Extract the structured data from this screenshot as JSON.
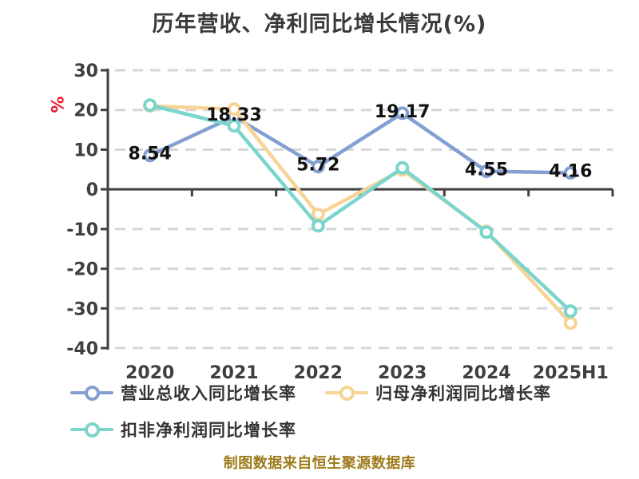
{
  "title": "历年营收、净利同比增长情况(%)",
  "footer": "制图数据来自恒生聚源数据库",
  "colors": {
    "grid": "#d6d6d6",
    "axis": "#3f3f3f",
    "axis_text": "#3f3f3f",
    "data_label": "#111111",
    "unit": "#e8192c",
    "title": "#3a3a3a",
    "legend_text": "#333333",
    "footer": "#9e7c1c"
  },
  "chart_data": {
    "type": "line",
    "categories": [
      "2020",
      "2021",
      "2022",
      "2023",
      "2024",
      "2025H1"
    ],
    "series": [
      {
        "name": "营业总收入同比增长率",
        "color": "#84a0d2",
        "values": [
          8.54,
          18.33,
          5.72,
          19.17,
          4.55,
          4.16
        ],
        "show_labels": true
      },
      {
        "name": "归母净利润同比增长率",
        "color": "#f7d496",
        "values": [
          21.0,
          20.2,
          -6.3,
          4.9,
          -10.6,
          -33.7
        ],
        "show_labels": false
      },
      {
        "name": "扣非净利润同比增长率",
        "color": "#7bd5cc",
        "values": [
          21.2,
          16.0,
          -9.2,
          5.4,
          -10.8,
          -30.7
        ],
        "show_labels": false
      }
    ],
    "title": "历年营收、净利同比增长情况(%)",
    "xlabel": "",
    "ylabel": "%",
    "y_unit": "%",
    "ylim": [
      -40,
      30
    ],
    "y_ticks": [
      30,
      20,
      10,
      0,
      -10,
      -20,
      -30,
      -40
    ],
    "grid": "dashed-horizontal",
    "legend_position": "bottom",
    "data_labels_series": "营业总收入同比增长率"
  }
}
